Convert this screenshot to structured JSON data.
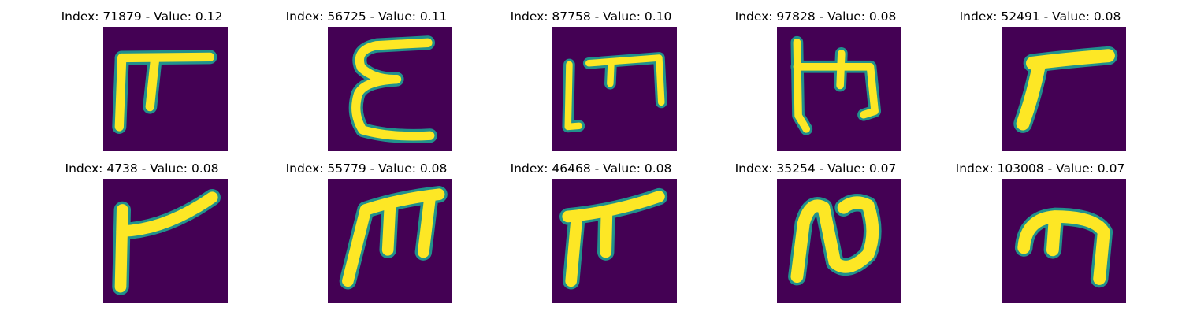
{
  "colors": {
    "background": "#440154",
    "mid": "#21918c",
    "stroke": "#fde725"
  },
  "panels": [
    {
      "title": "Index: 71879 - Value: 0.12",
      "glyph": "f-shaped-glyph"
    },
    {
      "title": "Index: 56725 - Value: 0.11",
      "glyph": "e-shaped-glyph"
    },
    {
      "title": "Index: 87758 - Value: 0.10",
      "glyph": "m-shaped-glyph"
    },
    {
      "title": "Index: 97828 - Value: 0.08",
      "glyph": "m-shaped-glyph"
    },
    {
      "title": "Index: 52491 - Value: 0.08",
      "glyph": "r-shaped-glyph"
    },
    {
      "title": "Index: 4738 - Value: 0.08",
      "glyph": "r-shaped-glyph"
    },
    {
      "title": "Index: 55779 - Value: 0.08",
      "glyph": "m-shaped-glyph"
    },
    {
      "title": "Index: 46468 - Value: 0.08",
      "glyph": "f-shaped-glyph"
    },
    {
      "title": "Index: 35254 - Value: 0.07",
      "glyph": "n-shaped-glyph"
    },
    {
      "title": "Index: 103008 - Value: 0.07",
      "glyph": "m-shaped-glyph"
    }
  ]
}
